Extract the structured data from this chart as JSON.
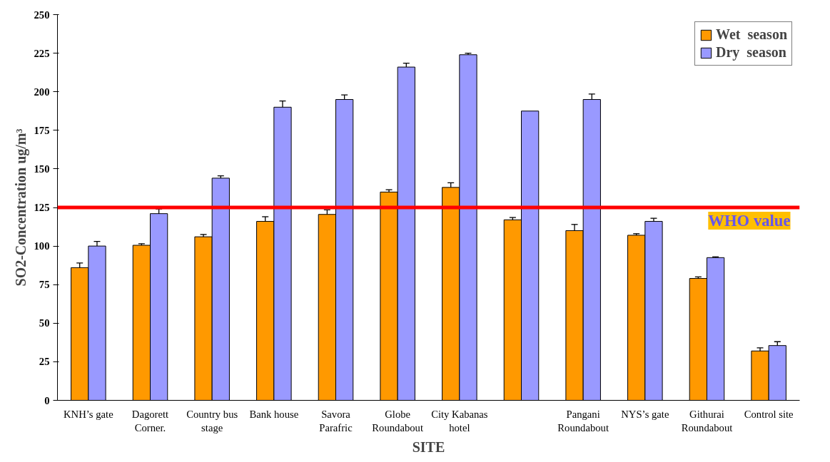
{
  "chart_data": {
    "type": "bar",
    "xlabel": "SITE",
    "ylabel": "SO2-Concentration ug/m³",
    "categories": [
      "KNH’s gate",
      "Dagorett Corner.",
      "Country bus stage",
      "Bank house",
      "Savora Parafric",
      "Globe Roundabout",
      "City Kabanas hotel",
      null,
      "Pangani Roundabout",
      "NYS’s gate",
      "Githurai Roundabout",
      "Control site"
    ],
    "series": [
      {
        "name": "Wet  season",
        "color": "#ff9900",
        "values": [
          86,
          100.5,
          106,
          116,
          120.5,
          135,
          138,
          117,
          110,
          107,
          79,
          32
        ],
        "errors": [
          3,
          1,
          1.5,
          3,
          3,
          1.5,
          3,
          1.5,
          4,
          1,
          1,
          2
        ]
      },
      {
        "name": "Dry  season",
        "color": "#9999ff",
        "values": [
          100,
          121,
          144,
          190,
          195,
          216,
          224,
          187.5,
          195,
          116,
          92.5,
          35.5
        ],
        "errors": [
          3,
          3,
          1.5,
          4,
          3,
          2.5,
          1,
          null,
          3.5,
          2,
          0.5,
          2.5
        ]
      }
    ],
    "ylim": [
      0,
      250
    ],
    "yticks": [
      0,
      25,
      50,
      75,
      100,
      125,
      150,
      175,
      200,
      225,
      250
    ],
    "ref_lines": [
      {
        "axis": "y",
        "value": 125,
        "label": "WHO value",
        "color": "#ff0000"
      }
    ],
    "grid": false,
    "legend": "top right"
  }
}
